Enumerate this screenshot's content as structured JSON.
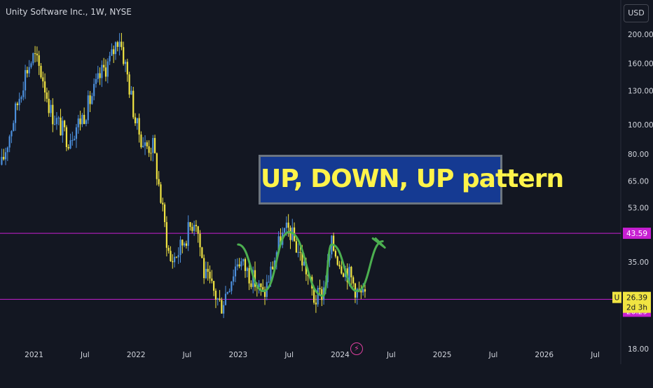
{
  "header": {
    "title": "Unity Software Inc., 1W, NYSE"
  },
  "currency": {
    "label": "USD"
  },
  "annotation": {
    "text": "UP, DOWN, UP pattern"
  },
  "colors": {
    "background": "#131722",
    "candle_up": "#4c8fdc",
    "candle_down": "#f0e442",
    "level_line": "#c71fd2",
    "pattern_stroke": "#4caf50",
    "label_bg": "#153a92",
    "label_text": "#fff34a"
  },
  "chart_data": {
    "type": "candlestick",
    "title": "Unity Software Inc., 1W, NYSE",
    "y_scale": "log",
    "ylim": [
      16,
      260
    ],
    "y_ticks": [
      "200.00",
      "160.00",
      "130.00",
      "100.00",
      "80.00",
      "65.00",
      "53.00",
      "35.00",
      "18.00"
    ],
    "x_ticks": [
      "2021",
      "Jul",
      "2022",
      "Jul",
      "2023",
      "Jul",
      "2024",
      "Jul",
      "2025",
      "Jul",
      "2026",
      "Jul"
    ],
    "xlim": [
      "2020-09",
      "2026-10"
    ],
    "levels": [
      {
        "label": "43.59",
        "value": 43.59
      },
      {
        "label": "26.29",
        "value": 26.29
      }
    ],
    "last_price": {
      "symbol": "U",
      "label": "26.39",
      "value": 26.39,
      "countdown": "2d 3h"
    },
    "anchors": [
      [
        "2020-09",
        70
      ],
      [
        "2020-12",
        150
      ],
      [
        "2021-01",
        170
      ],
      [
        "2021-02",
        145
      ],
      [
        "2021-03",
        110
      ],
      [
        "2021-05",
        90
      ],
      [
        "2021-07",
        110
      ],
      [
        "2021-09",
        150
      ],
      [
        "2021-10",
        165
      ],
      [
        "2021-11",
        200
      ],
      [
        "2021-12",
        145
      ],
      [
        "2022-01",
        100
      ],
      [
        "2022-02",
        85
      ],
      [
        "2022-03",
        85
      ],
      [
        "2022-05",
        35
      ],
      [
        "2022-06",
        38
      ],
      [
        "2022-08",
        50
      ],
      [
        "2022-09",
        32
      ],
      [
        "2022-11",
        25
      ],
      [
        "2022-12",
        30
      ],
      [
        "2023-01",
        36
      ],
      [
        "2023-03",
        30
      ],
      [
        "2023-04",
        27
      ],
      [
        "2023-06",
        42
      ],
      [
        "2023-07",
        45
      ],
      [
        "2023-09",
        33
      ],
      [
        "2023-10",
        26
      ],
      [
        "2023-11",
        28
      ],
      [
        "2023-12",
        40
      ],
      [
        "2024-01",
        35
      ],
      [
        "2024-02",
        32
      ],
      [
        "2024-03",
        28
      ],
      [
        "2024-04",
        26.39
      ]
    ],
    "pattern_path": [
      [
        "2023-01",
        40
      ],
      [
        "2023-04",
        28
      ],
      [
        "2023-07",
        44
      ],
      [
        "2023-11",
        27
      ],
      [
        "2023-12",
        40
      ],
      [
        "2024-03",
        28
      ],
      [
        "2024-06",
        41
      ]
    ]
  }
}
